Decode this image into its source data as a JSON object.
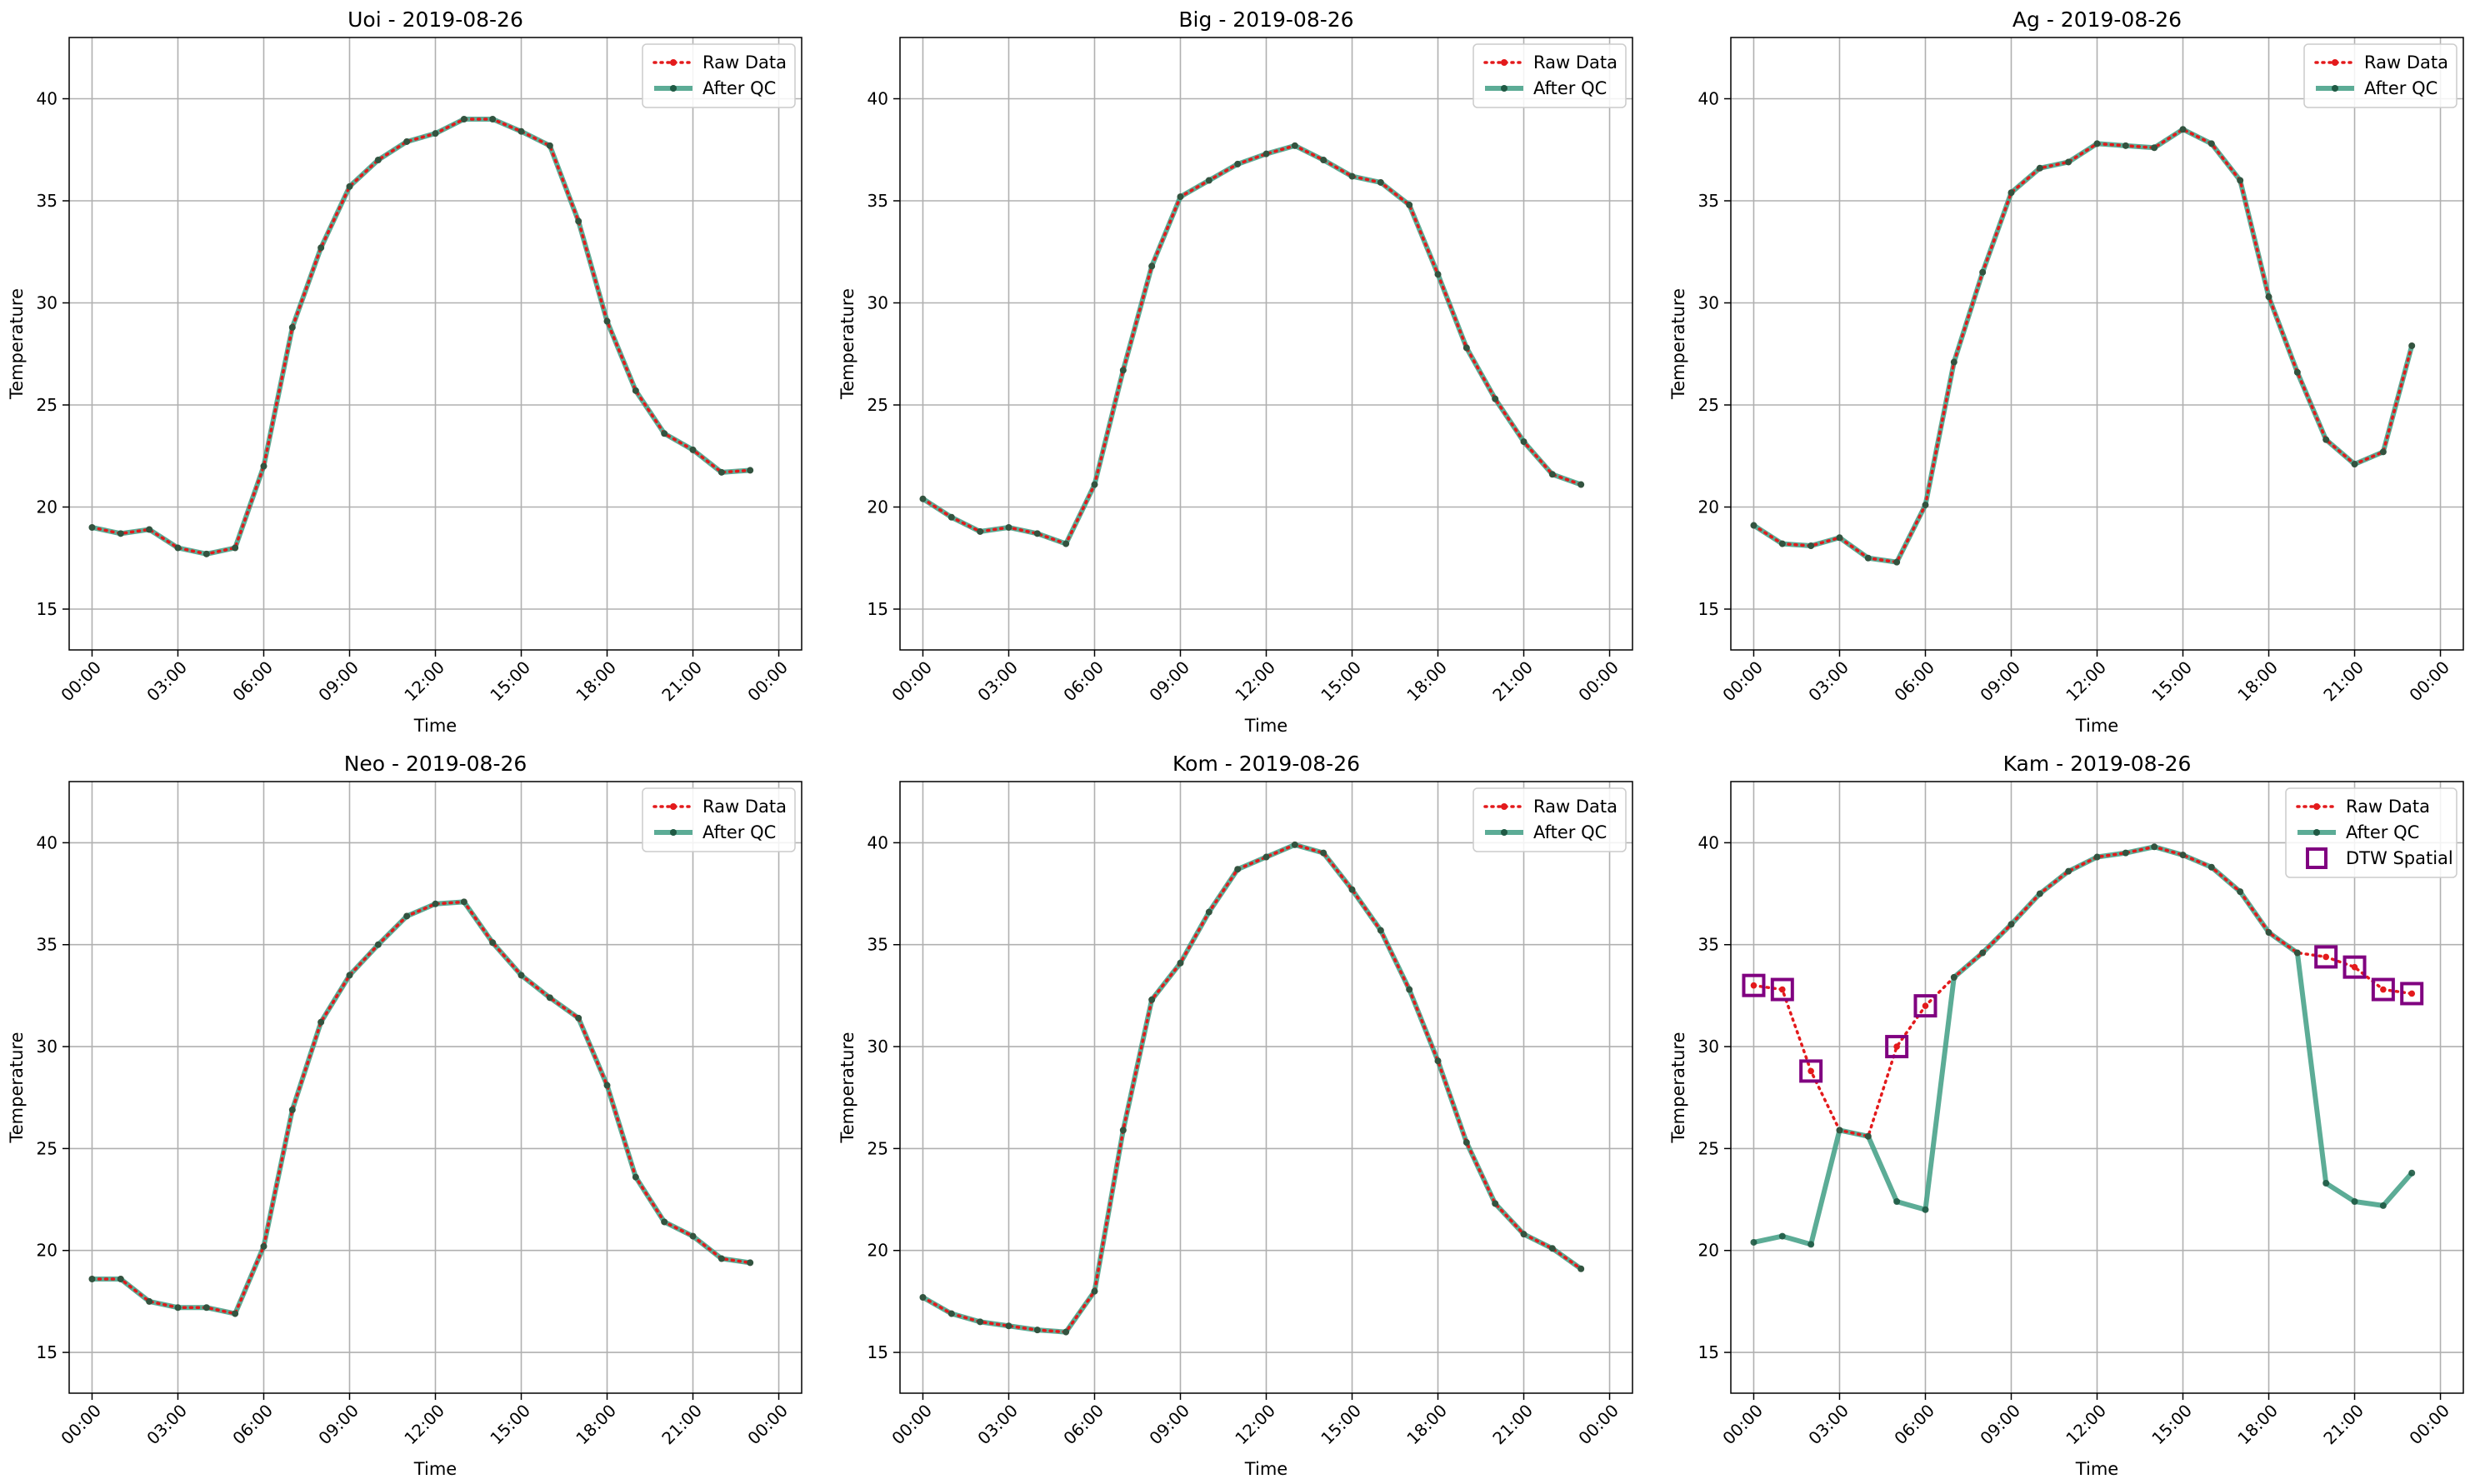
{
  "figure": {
    "x_ticks": [
      "00:00",
      "03:00",
      "06:00",
      "09:00",
      "12:00",
      "15:00",
      "18:00",
      "21:00",
      "00:00"
    ],
    "y_ticks": [
      15,
      20,
      25,
      30,
      35,
      40
    ],
    "colors": {
      "raw": "#e31a1c",
      "after_qc": "#3f9e84",
      "marker": "#1f5a44",
      "dtw": "#800080",
      "grid": "#b0b0b0"
    }
  },
  "chart_data": [
    {
      "type": "line",
      "title": "Uoi - 2019-08-26",
      "xlabel": "Time",
      "ylabel": "Temperature",
      "ylim": [
        13,
        43
      ],
      "grid": true,
      "legend_placement": "top-right",
      "series": [
        {
          "name": "Raw Data",
          "values": [
            19.0,
            18.7,
            18.9,
            18.0,
            17.7,
            18.0,
            22.0,
            28.8,
            32.7,
            35.7,
            37.0,
            37.9,
            38.3,
            39.0,
            39.0,
            38.4,
            37.7,
            34.0,
            29.1,
            25.7,
            23.6,
            22.8,
            21.7,
            21.8
          ]
        },
        {
          "name": "After QC",
          "values": [
            19.0,
            18.7,
            18.9,
            18.0,
            17.7,
            18.0,
            22.0,
            28.8,
            32.7,
            35.7,
            37.0,
            37.9,
            38.3,
            39.0,
            39.0,
            38.4,
            37.7,
            34.0,
            29.1,
            25.7,
            23.6,
            22.8,
            21.7,
            21.8
          ]
        }
      ]
    },
    {
      "type": "line",
      "title": "Big - 2019-08-26",
      "xlabel": "Time",
      "ylabel": "Temperature",
      "ylim": [
        13,
        43
      ],
      "grid": true,
      "legend_placement": "top-right",
      "series": [
        {
          "name": "Raw Data",
          "values": [
            20.4,
            19.5,
            18.8,
            19.0,
            18.7,
            18.2,
            21.1,
            26.7,
            31.8,
            35.2,
            36.0,
            36.8,
            37.3,
            37.7,
            37.0,
            36.2,
            35.9,
            34.8,
            31.4,
            27.8,
            25.3,
            23.2,
            21.6,
            21.1
          ]
        },
        {
          "name": "After QC",
          "values": [
            20.4,
            19.5,
            18.8,
            19.0,
            18.7,
            18.2,
            21.1,
            26.7,
            31.8,
            35.2,
            36.0,
            36.8,
            37.3,
            37.7,
            37.0,
            36.2,
            35.9,
            34.8,
            31.4,
            27.8,
            25.3,
            23.2,
            21.6,
            21.1
          ]
        }
      ]
    },
    {
      "type": "line",
      "title": "Ag - 2019-08-26",
      "xlabel": "Time",
      "ylabel": "Temperature",
      "ylim": [
        13,
        43
      ],
      "grid": true,
      "legend_placement": "top-right",
      "series": [
        {
          "name": "Raw Data",
          "values": [
            19.1,
            18.2,
            18.1,
            18.5,
            17.5,
            17.3,
            20.1,
            27.1,
            31.5,
            35.4,
            36.6,
            36.9,
            37.8,
            37.7,
            37.6,
            38.5,
            37.8,
            36.0,
            30.3,
            26.6,
            23.3,
            22.1,
            22.7,
            27.9
          ]
        },
        {
          "name": "After QC",
          "values": [
            19.1,
            18.2,
            18.1,
            18.5,
            17.5,
            17.3,
            20.1,
            27.1,
            31.5,
            35.4,
            36.6,
            36.9,
            37.8,
            37.7,
            37.6,
            38.5,
            37.8,
            36.0,
            30.3,
            26.6,
            23.3,
            22.1,
            22.7,
            27.9
          ]
        }
      ]
    },
    {
      "type": "line",
      "title": "Neo - 2019-08-26",
      "xlabel": "Time",
      "ylabel": "Temperature",
      "ylim": [
        13,
        43
      ],
      "grid": true,
      "legend_placement": "top-right",
      "series": [
        {
          "name": "Raw Data",
          "values": [
            18.6,
            18.6,
            17.5,
            17.2,
            17.2,
            16.9,
            20.2,
            26.9,
            31.2,
            33.5,
            35.0,
            36.4,
            37.0,
            37.1,
            35.1,
            33.5,
            32.4,
            31.4,
            28.1,
            23.6,
            21.4,
            20.7,
            19.6,
            19.4
          ]
        },
        {
          "name": "After QC",
          "values": [
            18.6,
            18.6,
            17.5,
            17.2,
            17.2,
            16.9,
            20.2,
            26.9,
            31.2,
            33.5,
            35.0,
            36.4,
            37.0,
            37.1,
            35.1,
            33.5,
            32.4,
            31.4,
            28.1,
            23.6,
            21.4,
            20.7,
            19.6,
            19.4
          ]
        }
      ]
    },
    {
      "type": "line",
      "title": "Kom - 2019-08-26",
      "xlabel": "Time",
      "ylabel": "Temperature",
      "ylim": [
        13,
        43
      ],
      "grid": true,
      "legend_placement": "top-right",
      "series": [
        {
          "name": "Raw Data",
          "values": [
            17.7,
            16.9,
            16.5,
            16.3,
            16.1,
            16.0,
            18.0,
            25.9,
            32.3,
            34.1,
            36.6,
            38.7,
            39.3,
            39.9,
            39.5,
            37.7,
            35.7,
            32.8,
            29.3,
            25.3,
            22.3,
            20.8,
            20.1,
            19.1
          ]
        },
        {
          "name": "After QC",
          "values": [
            17.7,
            16.9,
            16.5,
            16.3,
            16.1,
            16.0,
            18.0,
            25.9,
            32.3,
            34.1,
            36.6,
            38.7,
            39.3,
            39.9,
            39.5,
            37.7,
            35.7,
            32.8,
            29.3,
            25.3,
            22.3,
            20.8,
            20.1,
            19.1
          ]
        }
      ]
    },
    {
      "type": "line",
      "title": "Kam - 2019-08-26",
      "xlabel": "Time",
      "ylabel": "Temperature",
      "ylim": [
        13,
        43
      ],
      "grid": true,
      "legend_placement": "top-right",
      "series": [
        {
          "name": "Raw Data",
          "values": [
            33.0,
            32.8,
            28.8,
            25.9,
            25.6,
            30.0,
            32.0,
            33.4,
            34.6,
            36.0,
            37.5,
            38.6,
            39.3,
            39.5,
            39.8,
            39.4,
            38.8,
            37.6,
            35.6,
            34.6,
            34.4,
            33.9,
            32.8,
            32.6
          ]
        },
        {
          "name": "After QC",
          "values": [
            20.4,
            20.7,
            20.3,
            25.9,
            25.6,
            22.4,
            22.0,
            33.4,
            34.6,
            36.0,
            37.5,
            38.6,
            39.3,
            39.5,
            39.8,
            39.4,
            38.8,
            37.6,
            35.6,
            34.6,
            23.3,
            22.4,
            22.2,
            23.8
          ]
        },
        {
          "name": "DTW Spatial",
          "points": [
            {
              "hour": 0,
              "y": 33.0
            },
            {
              "hour": 1,
              "y": 32.8
            },
            {
              "hour": 2,
              "y": 28.8
            },
            {
              "hour": 5,
              "y": 30.0
            },
            {
              "hour": 6,
              "y": 32.0
            },
            {
              "hour": 20,
              "y": 34.4
            },
            {
              "hour": 21,
              "y": 33.9
            },
            {
              "hour": 22,
              "y": 32.8
            },
            {
              "hour": 23,
              "y": 32.6
            }
          ]
        }
      ]
    }
  ]
}
